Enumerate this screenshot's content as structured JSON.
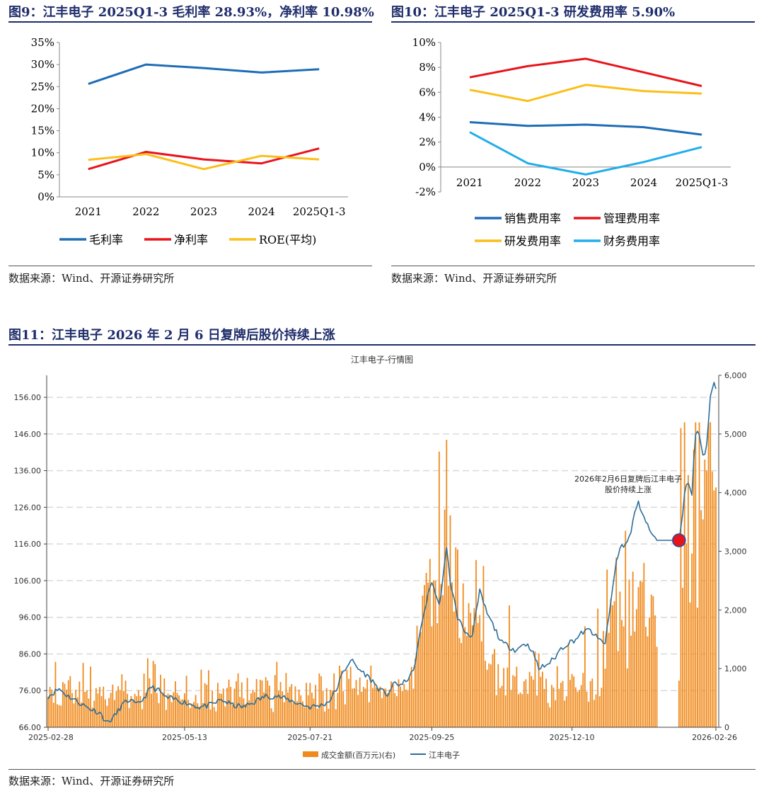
{
  "fig9": {
    "title": "图9：江丰电子 2025Q1-3 毛利率 28.93%，净利率 10.98%",
    "source": "数据来源：Wind、开源证券研究所"
  },
  "fig10": {
    "title": "图10：江丰电子 2025Q1-3 研发费用率 5.90%",
    "source": "数据来源：Wind、开源证券研究所"
  },
  "fig11": {
    "title": "图11：江丰电子 2026 年 2 月 6 日复牌后股价持续上涨",
    "source": "数据来源：Wind、开源证券研究所"
  },
  "colors": {
    "blue": "#1f6db5",
    "red": "#e8141c",
    "yellow": "#fbbf1a",
    "cyan": "#22aeea",
    "orange": "#f08a1c",
    "navy": "#2c6e98",
    "title": "#1f2d6b",
    "marker": "#e8141c"
  },
  "chart_data": [
    {
      "id": "fig9",
      "type": "line",
      "title": "",
      "categories": [
        "2021",
        "2022",
        "2023",
        "2024",
        "2025Q1-3"
      ],
      "ylim": [
        0,
        35
      ],
      "yticks": [
        "0%",
        "5%",
        "10%",
        "15%",
        "20%",
        "25%",
        "30%",
        "35%"
      ],
      "series": [
        {
          "name": "毛利率",
          "color": "#1f6db5",
          "values": [
            25.6,
            30.0,
            29.2,
            28.2,
            28.93
          ]
        },
        {
          "name": "净利率",
          "color": "#e8141c",
          "values": [
            6.3,
            10.2,
            8.5,
            7.6,
            10.98
          ]
        },
        {
          "name": "ROE(平均)",
          "color": "#fbbf1a",
          "values": [
            8.4,
            9.7,
            6.3,
            9.3,
            8.5
          ]
        }
      ]
    },
    {
      "id": "fig10",
      "type": "line",
      "title": "",
      "categories": [
        "2021",
        "2022",
        "2023",
        "2024",
        "2025Q1-3"
      ],
      "ylim": [
        -2,
        10
      ],
      "yticks": [
        "-2%",
        "0%",
        "2%",
        "4%",
        "6%",
        "8%",
        "10%"
      ],
      "series": [
        {
          "name": "销售费用率",
          "color": "#1f6db5",
          "values": [
            3.6,
            3.3,
            3.4,
            3.2,
            2.6
          ]
        },
        {
          "name": "管理费用率",
          "color": "#e8141c",
          "values": [
            7.2,
            8.1,
            8.7,
            7.6,
            6.5
          ]
        },
        {
          "name": "研发费用率",
          "color": "#fbbf1a",
          "values": [
            6.2,
            5.3,
            6.6,
            6.1,
            5.9
          ]
        },
        {
          "name": "财务费用率",
          "color": "#22aeea",
          "values": [
            2.8,
            0.3,
            -0.6,
            0.4,
            1.6
          ]
        }
      ]
    },
    {
      "id": "fig11",
      "type": "bar+line",
      "title": "江丰电子-行情图",
      "x_range": [
        "2025-02-28",
        "2026-02-26"
      ],
      "xticks": [
        "2025-02-28",
        "2025-05-13",
        "2025-07-21",
        "2025-09-25",
        "2025-12-10",
        "2026-02-26"
      ],
      "ylim_left": [
        66,
        162
      ],
      "yticks_left": [
        "66.00",
        "76.00",
        "86.00",
        "96.00",
        "106.00",
        "116.00",
        "126.00",
        "136.00",
        "146.00",
        "156.00"
      ],
      "ylim_right": [
        0,
        6000
      ],
      "yticks_right": [
        "0",
        "1,000",
        "2,000",
        "3,000",
        "4,000",
        "5,000",
        "6,000"
      ],
      "annotation": [
        "2026年2月6日复牌后江丰电子",
        "股价持续上涨"
      ],
      "legend": [
        "成交金额(百万元)(右)",
        "江丰电子"
      ],
      "price_anchors": [
        [
          0,
          74.5
        ],
        [
          6,
          76.5
        ],
        [
          10,
          74.8
        ],
        [
          16,
          73.0
        ],
        [
          22,
          71.2
        ],
        [
          28,
          70.0
        ],
        [
          32,
          67.2
        ],
        [
          36,
          69.0
        ],
        [
          40,
          72.0
        ],
        [
          44,
          73.5
        ],
        [
          48,
          72.0
        ],
        [
          52,
          74.0
        ],
        [
          56,
          77.0
        ],
        [
          60,
          76.0
        ],
        [
          64,
          74.0
        ],
        [
          70,
          73.5
        ],
        [
          76,
          72.5
        ],
        [
          82,
          71.5
        ],
        [
          88,
          72.0
        ],
        [
          94,
          73.5
        ],
        [
          100,
          72.0
        ],
        [
          106,
          71.5
        ],
        [
          112,
          73.0
        ],
        [
          118,
          74.5
        ],
        [
          124,
          74.5
        ],
        [
          130,
          73.5
        ],
        [
          136,
          72.5
        ],
        [
          142,
          71.5
        ],
        [
          148,
          72.0
        ],
        [
          152,
          73.0
        ],
        [
          156,
          76.0
        ],
        [
          160,
          81.0
        ],
        [
          164,
          84.5
        ],
        [
          168,
          82.0
        ],
        [
          172,
          80.5
        ],
        [
          176,
          78.5
        ],
        [
          180,
          76.0
        ],
        [
          184,
          75.0
        ],
        [
          188,
          78.0
        ],
        [
          192,
          77.5
        ],
        [
          196,
          80.0
        ],
        [
          198,
          81.0
        ],
        [
          200,
          87.0
        ],
        [
          204,
          98.0
        ],
        [
          208,
          106.0
        ],
        [
          212,
          99.0
        ],
        [
          216,
          114.5
        ],
        [
          218,
          106.0
        ],
        [
          222,
          96.0
        ],
        [
          226,
          92.0
        ],
        [
          230,
          91.0
        ],
        [
          234,
          103.0
        ],
        [
          238,
          97.0
        ],
        [
          242,
          93.0
        ],
        [
          246,
          89.0
        ],
        [
          250,
          88.0
        ],
        [
          254,
          87.0
        ],
        [
          258,
          89.0
        ],
        [
          262,
          87.5
        ],
        [
          266,
          82.0
        ],
        [
          270,
          83.0
        ],
        [
          274,
          84.5
        ],
        [
          278,
          87.5
        ],
        [
          282,
          89.0
        ],
        [
          286,
          90.0
        ],
        [
          290,
          92.0
        ],
        [
          294,
          92.5
        ],
        [
          298,
          90.0
        ],
        [
          302,
          89.0
        ],
        [
          304,
          96.0
        ],
        [
          306,
          104.0
        ],
        [
          308,
          111.0
        ],
        [
          310,
          115.0
        ],
        [
          314,
          116.5
        ],
        [
          316,
          119.0
        ],
        [
          318,
          125.0
        ],
        [
          320,
          127.0
        ],
        [
          322,
          125.0
        ],
        [
          324,
          122.0
        ],
        [
          328,
          118.0
        ],
        [
          330,
          117.0
        ],
        [
          338,
          117.0
        ],
        [
          342,
          117.0
        ],
        [
          343,
          120.0
        ],
        [
          345,
          130.0
        ],
        [
          347,
          133.0
        ],
        [
          349,
          130.0
        ],
        [
          351,
          146.5
        ],
        [
          353,
          146.0
        ],
        [
          355,
          140.0
        ],
        [
          357,
          142.5
        ],
        [
          359,
          157.0
        ],
        [
          361,
          160.0
        ],
        [
          362,
          159.0
        ]
      ],
      "halt": [
        330,
        342
      ],
      "resume_marker_index": 342,
      "volume_seed": 11
    }
  ]
}
